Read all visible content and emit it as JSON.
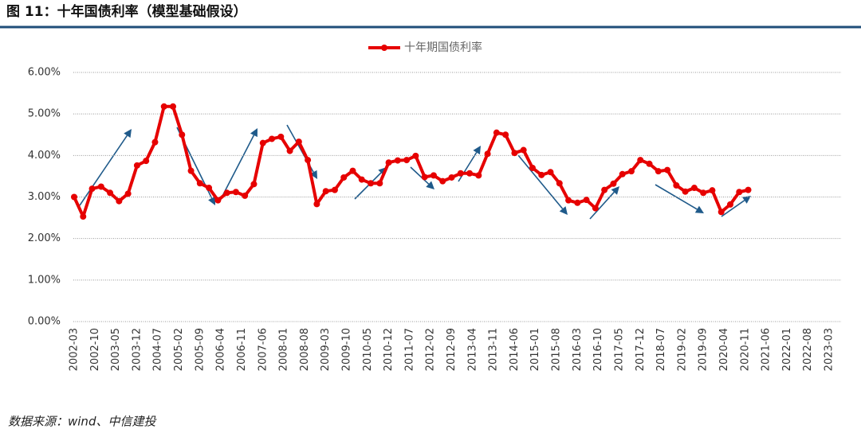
{
  "header": {
    "title": "图 11：十年国债利率（模型基础假设）"
  },
  "chart_data": {
    "type": "line",
    "x": [
      "2002-03",
      "2002-06",
      "2002-09",
      "2002-12",
      "2003-03",
      "2003-06",
      "2003-09",
      "2003-12",
      "2004-03",
      "2004-06",
      "2004-09",
      "2004-12",
      "2005-03",
      "2005-06",
      "2005-09",
      "2005-12",
      "2006-03",
      "2006-06",
      "2006-09",
      "2006-12",
      "2007-03",
      "2007-06",
      "2007-09",
      "2007-12",
      "2008-03",
      "2008-06",
      "2008-09",
      "2008-12",
      "2009-03",
      "2009-06",
      "2009-09",
      "2009-12",
      "2010-03",
      "2010-06",
      "2010-09",
      "2010-12",
      "2011-03",
      "2011-06",
      "2011-09",
      "2011-12",
      "2012-03",
      "2012-06",
      "2012-09",
      "2012-12",
      "2013-03",
      "2013-06",
      "2013-09",
      "2013-12",
      "2014-03",
      "2014-06",
      "2014-09",
      "2014-12",
      "2015-03",
      "2015-06",
      "2015-09",
      "2015-12",
      "2016-03",
      "2016-06",
      "2016-09",
      "2016-12",
      "2017-03",
      "2017-06",
      "2017-09",
      "2017-12",
      "2018-03",
      "2018-06",
      "2018-09",
      "2018-12",
      "2019-03",
      "2019-06",
      "2019-09",
      "2019-12",
      "2020-03",
      "2020-06",
      "2020-09",
      "2020-12"
    ],
    "series": [
      {
        "name": "十年期国债利率",
        "color": "#e60000",
        "values": [
          3.0,
          2.53,
          3.2,
          3.25,
          3.1,
          2.9,
          3.08,
          3.76,
          3.87,
          4.32,
          5.18,
          5.18,
          4.5,
          3.63,
          3.33,
          3.22,
          2.92,
          3.1,
          3.12,
          3.03,
          3.31,
          4.3,
          4.4,
          4.45,
          4.11,
          4.33,
          3.89,
          2.83,
          3.14,
          3.17,
          3.47,
          3.63,
          3.42,
          3.33,
          3.33,
          3.83,
          3.88,
          3.89,
          3.99,
          3.48,
          3.52,
          3.38,
          3.47,
          3.57,
          3.57,
          3.52,
          4.04,
          4.55,
          4.5,
          4.06,
          4.13,
          3.7,
          3.53,
          3.6,
          3.33,
          2.92,
          2.86,
          2.93,
          2.73,
          3.17,
          3.32,
          3.55,
          3.62,
          3.89,
          3.8,
          3.62,
          3.65,
          3.28,
          3.13,
          3.22,
          3.1,
          3.16,
          2.64,
          2.82,
          3.12,
          3.17
        ]
      }
    ],
    "xticks": [
      "2002-03",
      "2002-10",
      "2003-05",
      "2003-12",
      "2004-07",
      "2005-02",
      "2005-09",
      "2006-04",
      "2006-11",
      "2007-06",
      "2008-01",
      "2008-08",
      "2009-03",
      "2009-10",
      "2010-05",
      "2010-12",
      "2011-07",
      "2012-02",
      "2012-09",
      "2013-04",
      "2013-11",
      "2014-06",
      "2015-01",
      "2015-08",
      "2016-03",
      "2016-10",
      "2017-05",
      "2017-12",
      "2018-07",
      "2019-02",
      "2019-09",
      "2020-04",
      "2020-11",
      "2021-06",
      "2022-01",
      "2022-08",
      "2023-03"
    ],
    "ylim": [
      0,
      6
    ],
    "yticks": [
      {
        "value": 0,
        "label": "0.00%"
      },
      {
        "value": 1,
        "label": "1.00%"
      },
      {
        "value": 2,
        "label": "2.00%"
      },
      {
        "value": 3,
        "label": "3.00%"
      },
      {
        "value": 4,
        "label": "4.00%"
      },
      {
        "value": 5,
        "label": "5.00%"
      },
      {
        "value": 6,
        "label": "6.00%"
      }
    ],
    "grid": true,
    "legend": "top"
  },
  "footer": {
    "source": "数据来源：wind、中信建投"
  }
}
